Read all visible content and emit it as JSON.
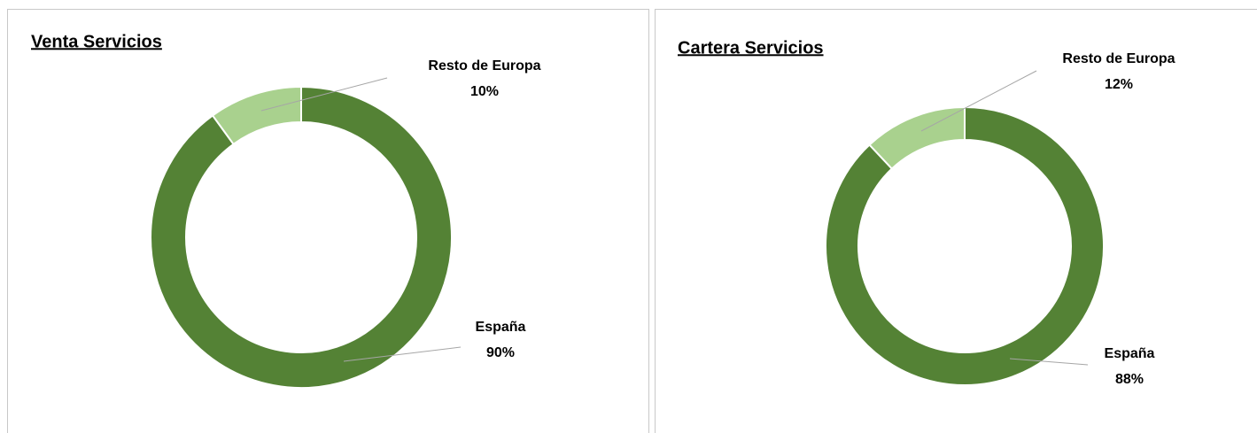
{
  "chart_data": [
    {
      "type": "pie",
      "donut": true,
      "title": "Venta Servicios",
      "categories": [
        "España",
        "Resto de Europa"
      ],
      "values": [
        90,
        10
      ],
      "value_labels": [
        "90%",
        "10%"
      ],
      "colors": [
        "#548235",
        "#a9d18e"
      ]
    },
    {
      "type": "pie",
      "donut": true,
      "title": "Cartera Servicios",
      "categories": [
        "España",
        "Resto de Europa"
      ],
      "values": [
        88,
        12
      ],
      "value_labels": [
        "88%",
        "12%"
      ],
      "colors": [
        "#548235",
        "#a9d18e"
      ]
    }
  ]
}
